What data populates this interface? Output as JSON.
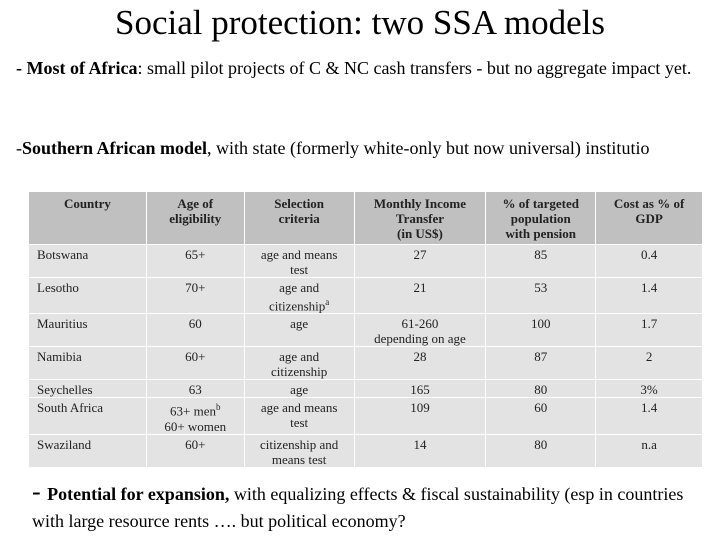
{
  "slide": {
    "title": "Social protection: two SSA models",
    "p1": {
      "dash": "- ",
      "bold": "Most of Africa",
      "rest": ": small pilot projects of C & NC cash transfers - but no aggregate impact yet."
    },
    "p2": {
      "dash": "-",
      "bold": "Southern African model",
      "rest": ", with state (formerly white-only but now universal) institutio"
    },
    "p3": {
      "dash": "- ",
      "bold": "Potential for expansion,",
      "rest": " with equalizing effects & fiscal sustainability (esp in countries with large resource rents …. but political economy?"
    }
  },
  "table": {
    "headers": [
      [
        "Country"
      ],
      [
        "Age of",
        "eligibility"
      ],
      [
        "Selection",
        "criteria"
      ],
      [
        "Monthly Income",
        "Transfer",
        "(in US$)"
      ],
      [
        "% of targeted",
        "population",
        "with pension"
      ],
      [
        "Cost as % of",
        "GDP"
      ]
    ],
    "rows": [
      {
        "country": "Botswana",
        "age": [
          "65+"
        ],
        "criteria": [
          "age and means",
          "test"
        ],
        "transfer": [
          "27"
        ],
        "pct": "85",
        "cost": "0.4"
      },
      {
        "country": "Lesotho",
        "age": [
          "70+"
        ],
        "criteria": [
          "age and",
          "citizenship"
        ],
        "criteria_sup": "a",
        "transfer": [
          "21"
        ],
        "pct": "53",
        "cost": "1.4"
      },
      {
        "country": "Mauritius",
        "age": [
          "60"
        ],
        "criteria": [
          "age"
        ],
        "transfer": [
          "61-260",
          "depending on age"
        ],
        "pct": "100",
        "cost": "1.7"
      },
      {
        "country": "Namibia",
        "age": [
          "60+"
        ],
        "criteria": [
          "age and",
          "citizenship"
        ],
        "transfer": [
          "28"
        ],
        "pct": "87",
        "cost": "2"
      },
      {
        "country": "Seychelles",
        "age": [
          "63"
        ],
        "criteria": [
          "age"
        ],
        "transfer": [
          "165"
        ],
        "pct": "80",
        "cost": "3%"
      },
      {
        "country": "South Africa",
        "age": [
          "63+ men",
          "60+ women"
        ],
        "age_sup": "b",
        "criteria": [
          "age and means",
          "test"
        ],
        "transfer": [
          "109"
        ],
        "pct": "60",
        "cost": "1.4"
      },
      {
        "country": "Swaziland",
        "age": [
          "60+"
        ],
        "criteria": [
          "citizenship and",
          "means test"
        ],
        "transfer": [
          "14"
        ],
        "pct": "80",
        "cost": "n.a"
      }
    ]
  }
}
